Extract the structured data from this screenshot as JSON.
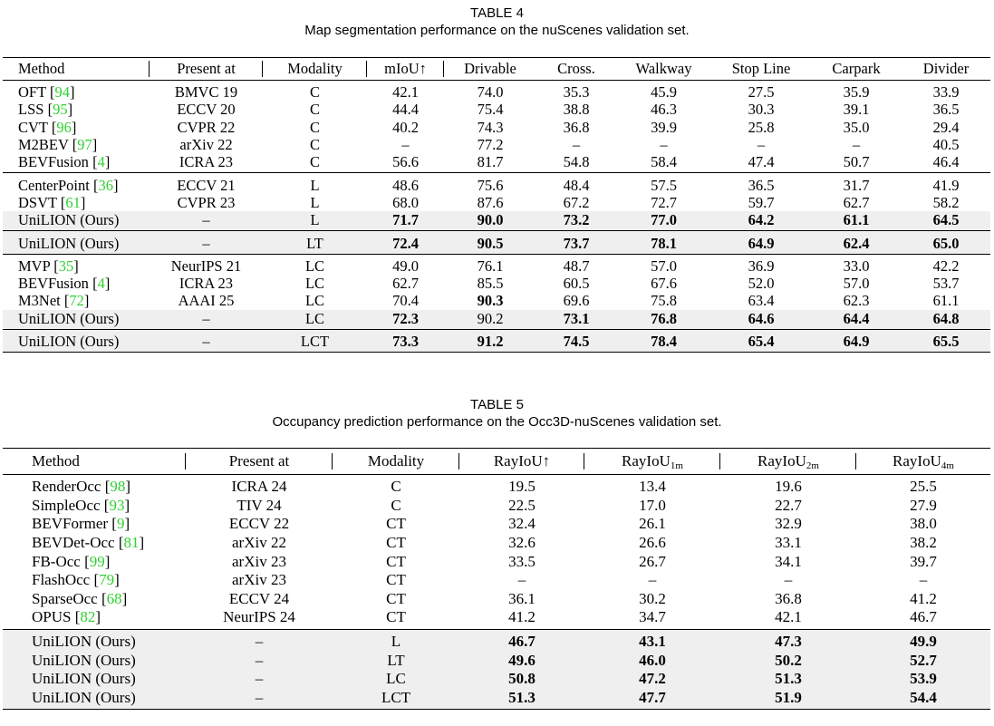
{
  "tables": [
    {
      "title": "TABLE 4",
      "caption": "Map segmentation performance on the nuScenes validation set.",
      "header": [
        "Method",
        "Present at",
        "Modality",
        "mIoU↑",
        "Drivable",
        "Cross.",
        "Walkway",
        "Stop Line",
        "Carpark",
        "Divider"
      ],
      "groups": [
        [
          {
            "cells": [
              {
                "text": "OFT",
                "ref": "[94]"
              },
              "BMVC 19",
              "C",
              "42.1",
              "74.0",
              "35.3",
              "45.9",
              "27.5",
              "35.9",
              "33.9"
            ]
          },
          {
            "cells": [
              {
                "text": "LSS",
                "ref": "[95]"
              },
              "ECCV 20",
              "C",
              "44.4",
              "75.4",
              "38.8",
              "46.3",
              "30.3",
              "39.1",
              "36.5"
            ]
          },
          {
            "cells": [
              {
                "text": "CVT",
                "ref": "[96]"
              },
              "CVPR 22",
              "C",
              "40.2",
              "74.3",
              "36.8",
              "39.9",
              "25.8",
              "35.0",
              "29.4"
            ]
          },
          {
            "cells": [
              {
                "text": "M2BEV",
                "ref": "[97]"
              },
              "arXiv 22",
              "C",
              "–",
              "77.2",
              "–",
              "–",
              "–",
              "–",
              "40.5"
            ]
          },
          {
            "cells": [
              {
                "text": "BEVFusion",
                "ref": "[4]"
              },
              "ICRA 23",
              "C",
              "56.6",
              "81.7",
              "54.8",
              "58.4",
              "47.4",
              "50.7",
              "46.4"
            ]
          }
        ],
        [
          {
            "cells": [
              {
                "text": "CenterPoint",
                "ref": "[36]"
              },
              "ECCV 21",
              "L",
              "48.6",
              "75.6",
              "48.4",
              "57.5",
              "36.5",
              "31.7",
              "41.9"
            ]
          },
          {
            "cells": [
              {
                "text": "DSVT",
                "ref": "[61]"
              },
              "CVPR 23",
              "L",
              "68.0",
              "87.6",
              "67.2",
              "72.7",
              "59.7",
              "62.7",
              "58.2"
            ]
          },
          {
            "cells": [
              "UniLION (Ours)",
              "–",
              "L",
              "71.7",
              "90.0",
              "73.2",
              "77.0",
              "64.2",
              "61.1",
              "64.5"
            ],
            "bold": [
              3,
              4,
              5,
              6,
              7,
              8,
              9
            ],
            "shaded": true
          }
        ],
        [
          {
            "cells": [
              "UniLION (Ours)",
              "–",
              "LT",
              "72.4",
              "90.5",
              "73.7",
              "78.1",
              "64.9",
              "62.4",
              "65.0"
            ],
            "bold": [
              3,
              4,
              5,
              6,
              7,
              8,
              9
            ],
            "shaded": true
          }
        ],
        [
          {
            "cells": [
              {
                "text": "MVP",
                "ref": "[35]"
              },
              "NeurIPS 21",
              "LC",
              "49.0",
              "76.1",
              "48.7",
              "57.0",
              "36.9",
              "33.0",
              "42.2"
            ]
          },
          {
            "cells": [
              {
                "text": "BEVFusion",
                "ref": "[4]"
              },
              "ICRA 23",
              "LC",
              "62.7",
              "85.5",
              "60.5",
              "67.6",
              "52.0",
              "57.0",
              "53.7"
            ]
          },
          {
            "cells": [
              {
                "text": "M3Net",
                "ref": "[72]"
              },
              "AAAI 25",
              "LC",
              "70.4",
              "90.3",
              "69.6",
              "75.8",
              "63.4",
              "62.3",
              "61.1"
            ],
            "bold": [
              4
            ]
          },
          {
            "cells": [
              "UniLION (Ours)",
              "–",
              "LC",
              "72.3",
              "90.2",
              "73.1",
              "76.8",
              "64.6",
              "64.4",
              "64.8"
            ],
            "bold": [
              3,
              5,
              6,
              7,
              8,
              9
            ],
            "shaded": true
          }
        ],
        [
          {
            "cells": [
              "UniLION (Ours)",
              "–",
              "LCT",
              "73.3",
              "91.2",
              "74.5",
              "78.4",
              "65.4",
              "64.9",
              "65.5"
            ],
            "bold": [
              3,
              4,
              5,
              6,
              7,
              8,
              9
            ],
            "shaded": true
          }
        ]
      ]
    },
    {
      "title": "TABLE 5",
      "caption": "Occupancy prediction performance on the Occ3D-nuScenes validation set.",
      "header": [
        "Method",
        "Present at",
        "Modality",
        "RayIoU↑",
        {
          "text": "RayIoU",
          "sub": "1m"
        },
        {
          "text": "RayIoU",
          "sub": "2m"
        },
        {
          "text": "RayIoU",
          "sub": "4m"
        }
      ],
      "groups": [
        [
          {
            "cells": [
              {
                "text": "RenderOcc",
                "ref": "[98]"
              },
              "ICRA 24",
              "C",
              "19.5",
              "13.4",
              "19.6",
              "25.5"
            ]
          },
          {
            "cells": [
              {
                "text": "SimpleOcc",
                "ref": "[93]"
              },
              "TIV 24",
              "C",
              "22.5",
              "17.0",
              "22.7",
              "27.9"
            ]
          },
          {
            "cells": [
              {
                "text": "BEVFormer",
                "ref": "[9]"
              },
              "ECCV 22",
              "CT",
              "32.4",
              "26.1",
              "32.9",
              "38.0"
            ]
          },
          {
            "cells": [
              {
                "text": "BEVDet-Occ",
                "ref": "[81]"
              },
              "arXiv 22",
              "CT",
              "32.6",
              "26.6",
              "33.1",
              "38.2"
            ]
          },
          {
            "cells": [
              {
                "text": "FB-Occ",
                "ref": "[99]"
              },
              "arXiv 23",
              "CT",
              "33.5",
              "26.7",
              "34.1",
              "39.7"
            ]
          },
          {
            "cells": [
              {
                "text": "FlashOcc",
                "ref": "[79]"
              },
              "arXiv 23",
              "CT",
              "–",
              "–",
              "–",
              "–"
            ]
          },
          {
            "cells": [
              {
                "text": "SparseOcc",
                "ref": "[68]"
              },
              "ECCV 24",
              "CT",
              "36.1",
              "30.2",
              "36.8",
              "41.2"
            ]
          },
          {
            "cells": [
              {
                "text": "OPUS",
                "ref": "[82]"
              },
              "NeurIPS 24",
              "CT",
              "41.2",
              "34.7",
              "42.1",
              "46.7"
            ]
          }
        ],
        [
          {
            "cells": [
              "UniLION (Ours)",
              "–",
              "L",
              "46.7",
              "43.1",
              "47.3",
              "49.9"
            ],
            "bold": [
              3,
              4,
              5,
              6
            ],
            "shaded": true
          },
          {
            "cells": [
              "UniLION (Ours)",
              "–",
              "LT",
              "49.6",
              "46.0",
              "50.2",
              "52.7"
            ],
            "bold": [
              3,
              4,
              5,
              6
            ],
            "shaded": true
          },
          {
            "cells": [
              "UniLION (Ours)",
              "–",
              "LC",
              "50.8",
              "47.2",
              "51.3",
              "53.9"
            ],
            "bold": [
              3,
              4,
              5,
              6
            ],
            "shaded": true
          },
          {
            "cells": [
              "UniLION (Ours)",
              "–",
              "LCT",
              "51.3",
              "47.7",
              "51.9",
              "54.4"
            ],
            "bold": [
              3,
              4,
              5,
              6
            ],
            "shaded": true
          }
        ]
      ]
    }
  ]
}
